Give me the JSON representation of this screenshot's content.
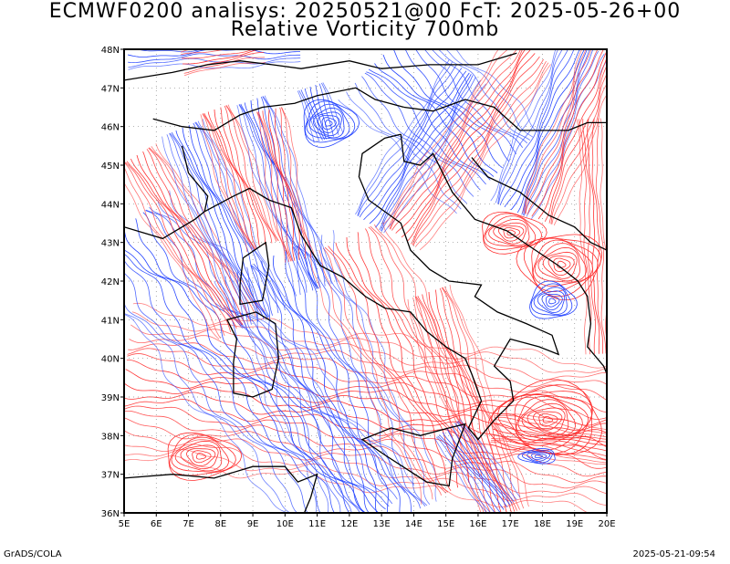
{
  "header": {
    "title_line1": "ECMWF0200 analisys: 20250521@00 FcT: 2025-05-26+00",
    "title_line2": "Relative Vorticity 700mb"
  },
  "map": {
    "lon_range": [
      5,
      20
    ],
    "lat_range": [
      36,
      48
    ],
    "lon_ticks": [
      "5E",
      "6E",
      "7E",
      "8E",
      "9E",
      "10E",
      "11E",
      "12E",
      "13E",
      "14E",
      "15E",
      "16E",
      "17E",
      "18E",
      "19E",
      "20E"
    ],
    "lat_ticks": [
      "36N",
      "37N",
      "38N",
      "39N",
      "40N",
      "41N",
      "42N",
      "43N",
      "44N",
      "45N",
      "46N",
      "47N",
      "48N"
    ],
    "positive_color": "#ff3030",
    "negative_color": "#2040ff",
    "coast_color": "#000000",
    "grid_style": "dotted"
  },
  "footer": {
    "left": "GrADS/COLA",
    "right": "2025-05-21-09:54"
  }
}
